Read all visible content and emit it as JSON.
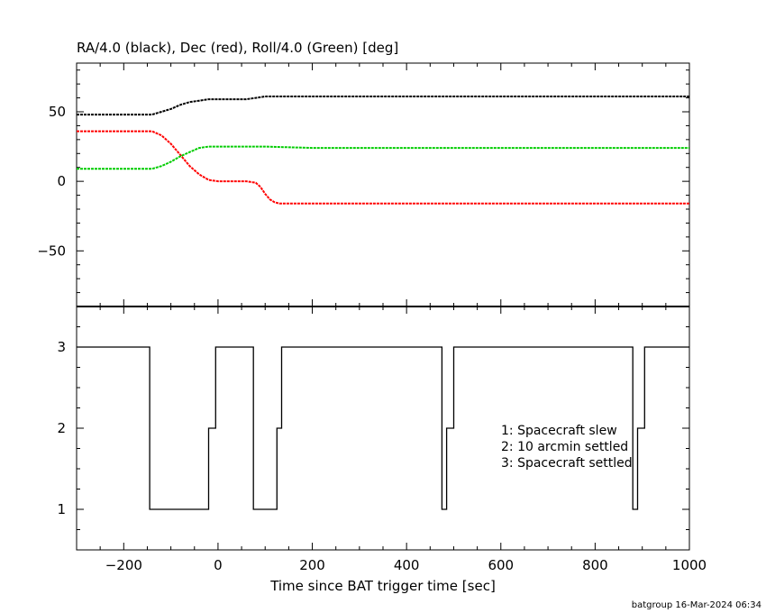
{
  "chart_data": [
    {
      "type": "line",
      "title": "RA/4.0 (black), Dec (red), Roll/4.0 (Green) [deg]",
      "xlim": [
        -300,
        1000
      ],
      "ylim": [
        -90,
        85
      ],
      "yticks": [
        -50,
        0,
        50
      ],
      "series": [
        {
          "color": "#000000",
          "x": [
            -300,
            -140,
            -120,
            -100,
            -80,
            -60,
            -40,
            -20,
            0,
            30,
            60,
            80,
            100,
            120,
            150,
            200,
            400,
            600,
            800,
            1000
          ],
          "y": [
            48,
            48,
            50,
            52,
            55,
            57,
            58,
            59,
            59,
            59,
            59,
            60,
            61,
            61,
            61,
            61,
            61,
            61,
            61,
            61
          ]
        },
        {
          "color": "#ff0000",
          "x": [
            -300,
            -140,
            -120,
            -100,
            -80,
            -60,
            -40,
            -20,
            0,
            30,
            60,
            80,
            90,
            100,
            110,
            120,
            130,
            200,
            400,
            600,
            800,
            1000
          ],
          "y": [
            36,
            36,
            33,
            27,
            19,
            11,
            5,
            1,
            0,
            0,
            0,
            -1,
            -4,
            -9,
            -13,
            -15,
            -16,
            -16,
            -16,
            -16,
            -16,
            -16
          ]
        },
        {
          "color": "#00cc00",
          "x": [
            -300,
            -140,
            -120,
            -100,
            -80,
            -60,
            -40,
            -20,
            0,
            50,
            100,
            200,
            400,
            600,
            800,
            1000
          ],
          "y": [
            9,
            9,
            11,
            14,
            18,
            21,
            24,
            25,
            25,
            25,
            25,
            24,
            24,
            24,
            24,
            24
          ]
        }
      ]
    },
    {
      "type": "line",
      "step": true,
      "xlabel": "Time since BAT trigger time [sec]",
      "xlim": [
        -300,
        1000
      ],
      "xticks": [
        -200,
        0,
        200,
        400,
        600,
        800,
        1000
      ],
      "ylim": [
        0.5,
        3.5
      ],
      "yticks": [
        1,
        2,
        3
      ],
      "series": [
        {
          "color": "#000000",
          "x": [
            -300,
            -145,
            -145,
            -20,
            -20,
            -5,
            -5,
            75,
            75,
            125,
            125,
            135,
            135,
            475,
            475,
            485,
            485,
            500,
            500,
            880,
            880,
            890,
            890,
            905,
            905,
            1000
          ],
          "y": [
            3,
            3,
            1,
            1,
            2,
            2,
            3,
            3,
            1,
            1,
            2,
            2,
            3,
            3,
            1,
            1,
            2,
            2,
            3,
            3,
            1,
            1,
            2,
            2,
            3,
            3
          ]
        }
      ],
      "legend": [
        "1: Spacecraft slew",
        "2: 10 arcmin settled",
        "3: Spacecraft settled"
      ]
    }
  ],
  "footer": "batgroup 16-Mar-2024 06:34"
}
